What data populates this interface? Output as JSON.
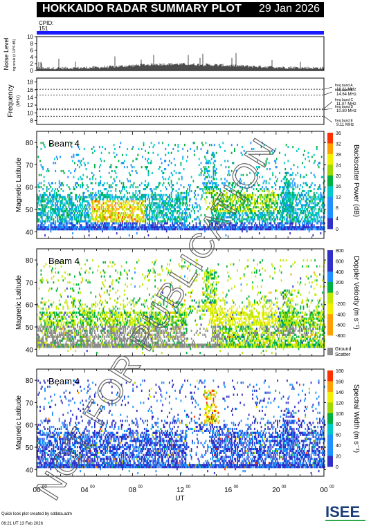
{
  "header": {
    "title": "HOKKAIDO RADAR SUMMARY PLOT",
    "date": "29 Jan 2026"
  },
  "cpid": {
    "label": "CPID:",
    "value": "151"
  },
  "noise_panel": {
    "ylabel": "Noise Level",
    "ylabel_sub": "log scale (x 10^6 dB)",
    "ticks": [
      "10",
      "8",
      "6",
      "4",
      "2",
      "0"
    ]
  },
  "freq_panel": {
    "ylabel": "Frequency",
    "unit": "(MHz)",
    "ticks": [
      "18",
      "16",
      "14",
      "12",
      "10",
      "8"
    ],
    "bands": [
      {
        "name": "freq band A",
        "value": "16.11 MHz"
      },
      {
        "name": "freq band B",
        "value": "14.64 MHz"
      },
      {
        "name": "freq band C",
        "value": "11.07 MHz"
      },
      {
        "name": "freq band D",
        "value": "10.80 MHz"
      },
      {
        "name": "freq band E",
        "value": "9.11 MHz"
      }
    ]
  },
  "panels": [
    {
      "beam": "Beam  4",
      "ylabel": "Magnetic Latitude",
      "cbar_label": "Backscatter Power (dB)",
      "cbar_ticks": [
        "36",
        "32",
        "28",
        "24",
        "20",
        "16",
        "12",
        "8",
        "4",
        "0"
      ]
    },
    {
      "beam": "Beam  4",
      "ylabel": "Magnetic Latitude",
      "cbar_label": "Doppler Velocity (m s⁻¹)",
      "cbar_ticks": [
        "800",
        "600",
        "400",
        "200",
        "0",
        "-200",
        "-400",
        "-600",
        "-800"
      ],
      "ground": "Ground",
      "scatter": "Scatter"
    },
    {
      "beam": "Beam  4",
      "ylabel": "Magnetic Latitude",
      "cbar_label": "Spectral Width (m s⁻¹)",
      "cbar_ticks": [
        "180",
        "160",
        "140",
        "120",
        "100",
        "80",
        "60",
        "40",
        "20",
        "0"
      ]
    }
  ],
  "lat_ticks": [
    "80",
    "70",
    "60",
    "50",
    "40"
  ],
  "x_ticks": [
    "00",
    "04",
    "08",
    "12",
    "16",
    "20",
    "00"
  ],
  "x_tick_sup": "00",
  "x_label": "UT",
  "footer": {
    "line1": "Quick look plot created by sddata.adm",
    "line2": "06:21 UT 13 Feb 2026",
    "logo": "ISEE"
  },
  "watermark": "NOT FOR PUBLICATION",
  "colors": {
    "cpid_bar": "#1a1aff",
    "ground_scatter": "#8c8c8c"
  },
  "chart_data": {
    "type": "heatmap",
    "title": "HOKKAIDO RADAR SUMMARY PLOT",
    "xlabel": "UT",
    "ylabel": "Magnetic Latitude",
    "xlim_hours": [
      0,
      24
    ],
    "ylim": [
      37,
      85
    ],
    "series": [
      {
        "name": "Backscatter Power (dB)",
        "range": [
          0,
          36
        ]
      },
      {
        "name": "Doppler Velocity (m s⁻¹)",
        "range": [
          -800,
          800
        ]
      },
      {
        "name": "Spectral Width (m s⁻¹)",
        "range": [
          0,
          180
        ]
      }
    ],
    "noise_ylim": [
      0,
      10
    ],
    "freq_ylim": [
      7,
      19
    ],
    "freq_bands_mhz": [
      16.11,
      14.64,
      11.07,
      10.8,
      9.11
    ]
  }
}
